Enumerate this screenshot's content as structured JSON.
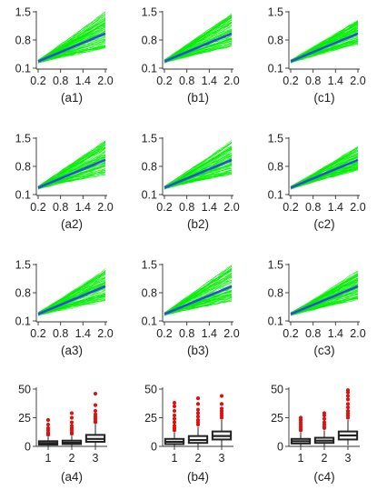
{
  "figure": {
    "colors": {
      "spaghetti": "#00ee00",
      "mean_line": "#3344ee",
      "outlier": "#e01010",
      "box": "#222222"
    }
  },
  "chart_data": [
    {
      "panel": "(a1)",
      "type": "line",
      "x": [
        0.2,
        2.0
      ],
      "xticks": [
        "0.2",
        "0.8",
        "1.4",
        "2.0"
      ],
      "yticks": [
        "0.1",
        "0.8",
        "1.5"
      ],
      "xlim": [
        0.2,
        2.0
      ],
      "ylim": [
        0.1,
        1.5
      ],
      "mean_line": {
        "x": [
          0.2,
          2.0
        ],
        "y": [
          0.27,
          0.96
        ]
      },
      "spread_at_x_max": [
        0.6,
        1.5
      ],
      "n_curves": 100
    },
    {
      "panel": "(b1)",
      "type": "line",
      "x": [
        0.2,
        2.0
      ],
      "xticks": [
        "0.2",
        "0.8",
        "1.4",
        "2.0"
      ],
      "yticks": [
        "0.1",
        "0.8",
        "1.5"
      ],
      "xlim": [
        0.2,
        2.0
      ],
      "ylim": [
        0.1,
        1.5
      ],
      "mean_line": {
        "x": [
          0.2,
          2.0
        ],
        "y": [
          0.27,
          0.96
        ]
      },
      "spread_at_x_max": [
        0.65,
        1.45
      ],
      "n_curves": 100
    },
    {
      "panel": "(c1)",
      "type": "line",
      "x": [
        0.2,
        2.0
      ],
      "xticks": [
        "0.2",
        "0.8",
        "1.4",
        "2.0"
      ],
      "yticks": [
        "0.1",
        "0.8",
        "1.5"
      ],
      "xlim": [
        0.2,
        2.0
      ],
      "ylim": [
        0.1,
        1.5
      ],
      "mean_line": {
        "x": [
          0.2,
          2.0
        ],
        "y": [
          0.27,
          0.96
        ]
      },
      "spread_at_x_max": [
        0.7,
        1.3
      ],
      "n_curves": 100
    },
    {
      "panel": "(a2)",
      "type": "line",
      "x": [
        0.2,
        2.0
      ],
      "xticks": [
        "0.2",
        "0.8",
        "1.4",
        "2.0"
      ],
      "yticks": [
        "0.1",
        "0.8",
        "1.5"
      ],
      "xlim": [
        0.2,
        2.0
      ],
      "ylim": [
        0.1,
        1.5
      ],
      "mean_line": {
        "x": [
          0.2,
          2.0
        ],
        "y": [
          0.27,
          0.96
        ]
      },
      "spread_at_x_max": [
        0.6,
        1.45
      ],
      "n_curves": 100
    },
    {
      "panel": "(b2)",
      "type": "line",
      "x": [
        0.2,
        2.0
      ],
      "xticks": [
        "0.2",
        "0.8",
        "1.4",
        "2.0"
      ],
      "yticks": [
        "0.1",
        "0.8",
        "1.5"
      ],
      "xlim": [
        0.2,
        2.0
      ],
      "ylim": [
        0.1,
        1.5
      ],
      "mean_line": {
        "x": [
          0.2,
          2.0
        ],
        "y": [
          0.27,
          0.96
        ]
      },
      "spread_at_x_max": [
        0.6,
        1.45
      ],
      "n_curves": 100
    },
    {
      "panel": "(c2)",
      "type": "line",
      "x": [
        0.2,
        2.0
      ],
      "xticks": [
        "0.2",
        "0.8",
        "1.4",
        "2.0"
      ],
      "yticks": [
        "0.1",
        "0.8",
        "1.5"
      ],
      "xlim": [
        0.2,
        2.0
      ],
      "ylim": [
        0.1,
        1.5
      ],
      "mean_line": {
        "x": [
          0.2,
          2.0
        ],
        "y": [
          0.27,
          0.96
        ]
      },
      "spread_at_x_max": [
        0.7,
        1.3
      ],
      "n_curves": 100
    },
    {
      "panel": "(a3)",
      "type": "line",
      "x": [
        0.2,
        2.0
      ],
      "xticks": [
        "0.2",
        "0.8",
        "1.4",
        "2.0"
      ],
      "yticks": [
        "0.1",
        "0.8",
        "1.5"
      ],
      "xlim": [
        0.2,
        2.0
      ],
      "ylim": [
        0.1,
        1.5
      ],
      "mean_line": {
        "x": [
          0.2,
          2.0
        ],
        "y": [
          0.27,
          0.96
        ]
      },
      "spread_at_x_max": [
        0.6,
        1.4
      ],
      "n_curves": 100
    },
    {
      "panel": "(b3)",
      "type": "line",
      "x": [
        0.2,
        2.0
      ],
      "xticks": [
        "0.2",
        "0.8",
        "1.4",
        "2.0"
      ],
      "yticks": [
        "0.1",
        "0.8",
        "1.5"
      ],
      "xlim": [
        0.2,
        2.0
      ],
      "ylim": [
        0.1,
        1.5
      ],
      "mean_line": {
        "x": [
          0.2,
          2.0
        ],
        "y": [
          0.27,
          0.96
        ]
      },
      "spread_at_x_max": [
        0.6,
        1.5
      ],
      "n_curves": 100
    },
    {
      "panel": "(c3)",
      "type": "line",
      "x": [
        0.2,
        2.0
      ],
      "xticks": [
        "0.2",
        "0.8",
        "1.4",
        "2.0"
      ],
      "yticks": [
        "0.1",
        "0.8",
        "1.5"
      ],
      "xlim": [
        0.2,
        2.0
      ],
      "ylim": [
        0.1,
        1.5
      ],
      "mean_line": {
        "x": [
          0.2,
          2.0
        ],
        "y": [
          0.27,
          0.96
        ]
      },
      "spread_at_x_max": [
        0.65,
        1.35
      ],
      "n_curves": 100
    },
    {
      "panel": "(a4)",
      "type": "box",
      "categories": [
        "1",
        "2",
        "3"
      ],
      "yticks": [
        "0",
        "25",
        "50"
      ],
      "ylim": [
        0,
        50
      ],
      "boxes": [
        {
          "q1": 1.5,
          "median": 2.8,
          "q3": 4.5,
          "whisker_low": 0,
          "whisker_high": 8,
          "outliers": [
            10,
            11,
            12,
            14,
            16,
            19,
            23
          ]
        },
        {
          "q1": 2,
          "median": 3.2,
          "q3": 5,
          "whisker_low": 0,
          "whisker_high": 9,
          "outliers": [
            11,
            12,
            14,
            16,
            18,
            21,
            25,
            29
          ]
        },
        {
          "q1": 4,
          "median": 6.5,
          "q3": 10,
          "whisker_low": 0,
          "whisker_high": 19,
          "outliers": [
            21,
            22,
            24,
            26,
            28,
            31,
            36,
            46
          ]
        }
      ]
    },
    {
      "panel": "(b4)",
      "type": "box",
      "categories": [
        "1",
        "2",
        "3"
      ],
      "yticks": [
        "0",
        "25",
        "50"
      ],
      "ylim": [
        0,
        50
      ],
      "boxes": [
        {
          "q1": 2,
          "median": 4,
          "q3": 6.5,
          "whisker_low": 0,
          "whisker_high": 12,
          "outliers": [
            14,
            16,
            18,
            21,
            24,
            27,
            31,
            35,
            38
          ]
        },
        {
          "q1": 3,
          "median": 5.5,
          "q3": 9,
          "whisker_low": 0,
          "whisker_high": 17,
          "outliers": [
            19,
            21,
            23,
            26,
            29,
            32,
            37,
            42
          ]
        },
        {
          "q1": 6,
          "median": 9,
          "q3": 13,
          "whisker_low": 0,
          "whisker_high": 23,
          "outliers": [
            25,
            27,
            29,
            31,
            33,
            37,
            44
          ]
        }
      ]
    },
    {
      "panel": "(c4)",
      "type": "box",
      "categories": [
        "1",
        "2",
        "3"
      ],
      "yticks": [
        "0",
        "25",
        "50"
      ],
      "ylim": [
        0,
        50
      ],
      "boxes": [
        {
          "q1": 2.5,
          "median": 4.5,
          "q3": 6.5,
          "whisker_low": 0,
          "whisker_high": 12,
          "outliers": [
            14,
            15,
            17,
            19,
            21,
            23,
            25
          ]
        },
        {
          "q1": 3,
          "median": 5,
          "q3": 7.5,
          "whisker_low": 0,
          "whisker_high": 14,
          "outliers": [
            16,
            17,
            19,
            21,
            24,
            27,
            29
          ]
        },
        {
          "q1": 6,
          "median": 9.5,
          "q3": 13,
          "whisker_low": 1,
          "whisker_high": 23,
          "outliers": [
            25,
            27,
            29,
            31,
            34,
            37,
            41,
            44,
            47,
            49
          ]
        }
      ]
    }
  ]
}
